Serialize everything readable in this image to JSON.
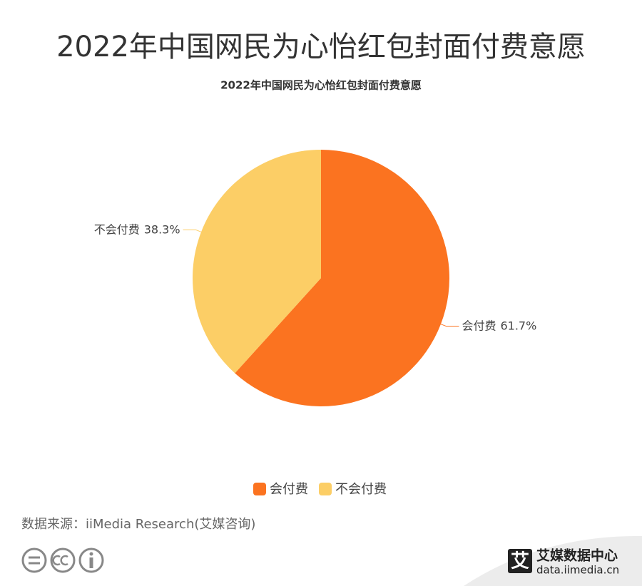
{
  "page_title": "2022年中国网民为心怡红包封面付费意愿",
  "chart_data": {
    "type": "pie",
    "title": "2022年中国网民为心怡红包封面付费意愿",
    "categories": [
      "会付费",
      "不会付费"
    ],
    "values": [
      61.7,
      38.3
    ],
    "value_labels": [
      "61.7%",
      "38.3%"
    ],
    "colors": [
      "#fb7320",
      "#fcce66"
    ],
    "legend": "bottom"
  },
  "source": "数据来源：iiMedia Research(艾媒咨询)",
  "footer": {
    "logo_char": "艾",
    "brand": "艾媒数据中心",
    "url": "data.iimedia.cn"
  }
}
